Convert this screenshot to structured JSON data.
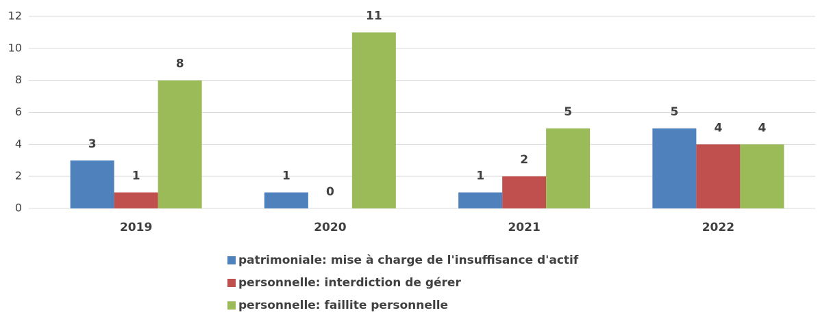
{
  "chart_data": {
    "type": "bar",
    "categories": [
      "2019",
      "2020",
      "2021",
      "2022"
    ],
    "series": [
      {
        "name": "patrimoniale: mise à charge de l'insuffisance d'actif",
        "color": "#4f81bd",
        "values": [
          3,
          1,
          1,
          5
        ]
      },
      {
        "name": "personnelle: interdiction de gérer",
        "color": "#c0504d",
        "values": [
          1,
          0,
          2,
          4
        ]
      },
      {
        "name": "personnelle: faillite personnelle",
        "color": "#9bbb59",
        "values": [
          8,
          11,
          5,
          4
        ]
      }
    ],
    "ylim": [
      0,
      12
    ],
    "yticks": [
      0,
      2,
      4,
      6,
      8,
      10,
      12
    ],
    "grid": true,
    "legend": "bottom"
  }
}
